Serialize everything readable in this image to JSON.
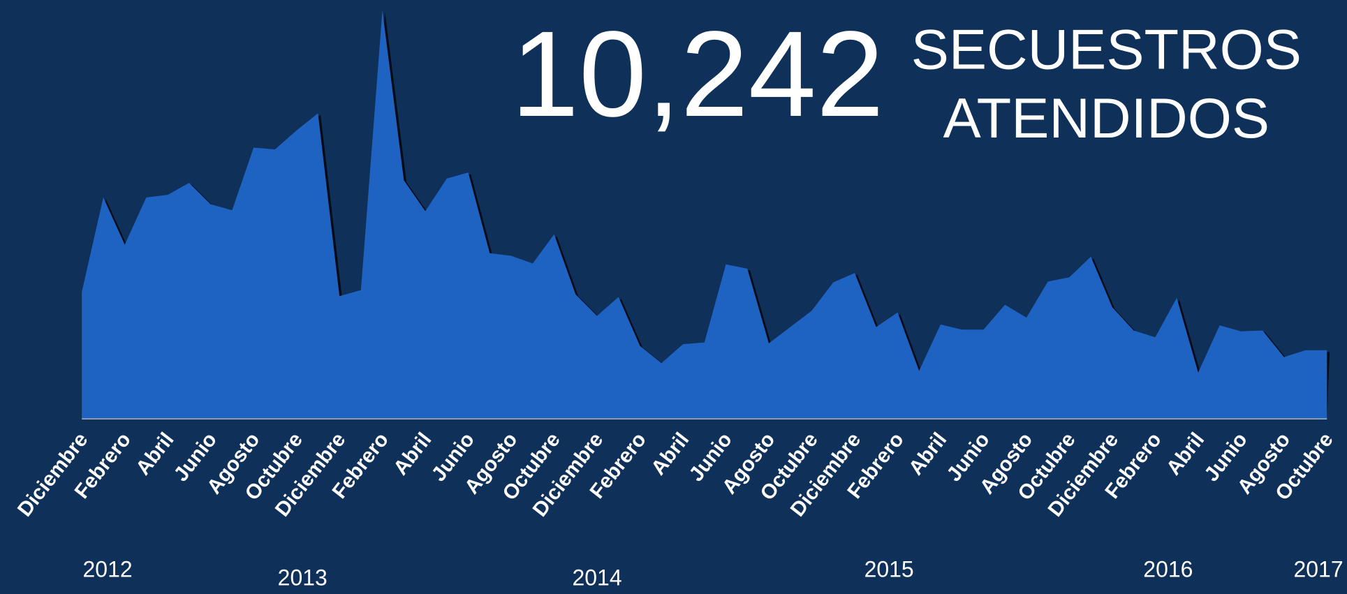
{
  "chart_data": {
    "type": "area",
    "title": "10,242",
    "subtitle": [
      "SECUESTROS",
      "ATENDIDOS"
    ],
    "categories": [
      "Diciembre",
      null,
      "Febrero",
      null,
      "Abril",
      null,
      "Junio",
      null,
      "Agosto",
      null,
      "Octubre",
      null,
      "Diciembre",
      null,
      "Febrero",
      null,
      "Abril",
      null,
      "Junio",
      null,
      "Agosto",
      null,
      "Octubre",
      null,
      "Diciembre",
      null,
      "Febrero",
      null,
      "Abril",
      null,
      "Junio",
      null,
      "Agosto",
      null,
      "Octubre",
      null,
      "Diciembre",
      null,
      "Febrero",
      null,
      "Abril",
      null,
      "Junio",
      null,
      "Agosto",
      null,
      "Octubre",
      null,
      "Diciembre",
      null,
      "Febrero",
      null,
      "Abril",
      null,
      "Junio",
      null,
      "Agosto",
      null,
      "Octubre"
    ],
    "values": [
      148,
      258,
      203,
      258,
      261,
      275,
      250,
      243,
      316,
      314,
      336,
      356,
      143,
      150,
      476,
      278,
      242,
      280,
      287,
      193,
      190,
      181,
      215,
      145,
      120,
      142,
      85,
      65,
      87,
      89,
      180,
      175,
      88,
      107,
      126,
      159,
      170,
      107,
      124,
      56,
      110,
      104,
      104,
      133,
      118,
      160,
      165,
      189,
      130,
      103,
      95,
      141,
      54,
      109,
      102,
      103,
      72,
      80,
      80
    ],
    "year_labels": [
      "2012",
      "2013",
      "2014",
      "2015",
      "2016",
      "2017"
    ],
    "color": "#1f63c2",
    "ylim": [
      0,
      480
    ]
  }
}
